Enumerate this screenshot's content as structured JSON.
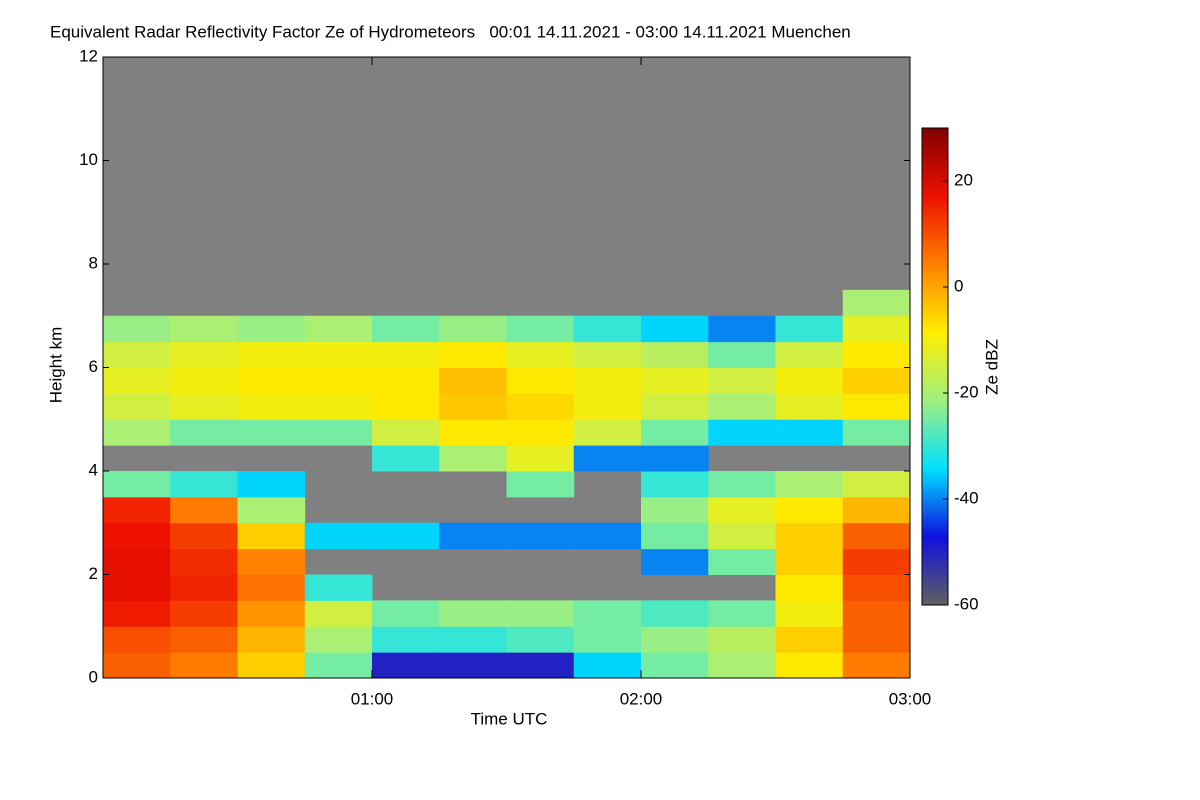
{
  "chart_data": {
    "type": "heatmap",
    "title": "Equivalent Radar Reflectivity Factor Ze of Hydrometeors   00:01 14.11.2021 - 03:00 14.11.2021 Muenchen",
    "x_label": "Time UTC",
    "y_label": "Height km",
    "colorbar_label": "Ze dBZ",
    "xlim": [
      0,
      3
    ],
    "xticks": [
      {
        "value": 1,
        "label": "01:00"
      },
      {
        "value": 2,
        "label": "02:00"
      },
      {
        "value": 3,
        "label": "03:00"
      }
    ],
    "ylim": [
      0,
      12
    ],
    "yticks": [
      0,
      2,
      4,
      6,
      8,
      10,
      12
    ],
    "clim": [
      -60,
      30
    ],
    "cticks": [
      -60,
      -40,
      -20,
      0,
      20
    ],
    "colormap": [
      "#606060",
      "#1010e0",
      "#00e0ff",
      "#a0f080",
      "#ffee00",
      "#ff8000",
      "#ee1000",
      "#800000"
    ],
    "no_data_color": "#808080",
    "xbins": [
      0,
      0.25,
      0.5,
      0.75,
      1,
      1.25,
      1.5,
      1.75,
      2,
      2.25,
      2.5,
      2.75,
      3
    ],
    "ybins": [
      0,
      0.5,
      1,
      1.5,
      2,
      2.5,
      3,
      3.5,
      4,
      4.5,
      5,
      5.5,
      6,
      6.5,
      7,
      7.5,
      8
    ],
    "z": [
      [
        8,
        10,
        16,
        18,
        18,
        17,
        15,
        -25,
        null,
        -20,
        -15,
        -12,
        -15,
        -22,
        null,
        null
      ],
      [
        5,
        8,
        12,
        15,
        14,
        12,
        5,
        -30,
        null,
        -25,
        -12,
        -10,
        -12,
        -20,
        null,
        null
      ],
      [
        -5,
        -2,
        2,
        6,
        4,
        -5,
        -20,
        -35,
        null,
        -25,
        -10,
        -8,
        -10,
        -22,
        null,
        null
      ],
      [
        -25,
        -20,
        -15,
        -30,
        null,
        -35,
        null,
        null,
        null,
        -25,
        -10,
        -8,
        -10,
        -20,
        null,
        null
      ],
      [
        -50,
        -30,
        -25,
        null,
        null,
        -35,
        null,
        null,
        -30,
        -15,
        -8,
        -8,
        -10,
        -25,
        null,
        null
      ],
      [
        -50,
        -30,
        -22,
        null,
        null,
        -40,
        null,
        null,
        -20,
        -8,
        -4,
        -3,
        -8,
        -22,
        null,
        null
      ],
      [
        -50,
        -28,
        -22,
        null,
        null,
        -40,
        null,
        -25,
        -12,
        -8,
        -6,
        -8,
        -12,
        -25,
        null,
        null
      ],
      [
        -35,
        -25,
        -25,
        null,
        null,
        -40,
        null,
        null,
        -40,
        -15,
        -10,
        -10,
        -15,
        -30,
        null,
        null
      ],
      [
        -25,
        -22,
        -28,
        null,
        -40,
        -25,
        -22,
        -30,
        -40,
        -25,
        -15,
        -12,
        -18,
        -35,
        null,
        null
      ],
      [
        -20,
        -18,
        -25,
        null,
        -25,
        -15,
        -12,
        -25,
        null,
        -35,
        -20,
        -15,
        -25,
        -40,
        null,
        null
      ],
      [
        -8,
        -5,
        -10,
        -8,
        -5,
        -5,
        -8,
        -20,
        null,
        -35,
        -12,
        -10,
        -15,
        -30,
        null,
        null
      ],
      [
        5,
        8,
        8,
        10,
        12,
        8,
        -2,
        -15,
        null,
        -25,
        -8,
        -5,
        -8,
        -12,
        -20,
        null
      ]
    ]
  }
}
